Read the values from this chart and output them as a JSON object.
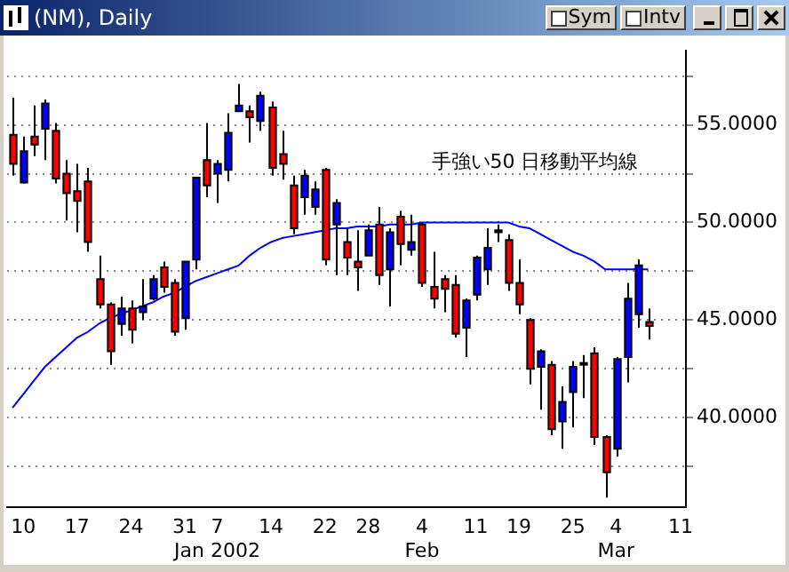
{
  "chart_data": {
    "type": "candlestick",
    "title": "(NM), Daily",
    "categories": [
      null,
      "10",
      null,
      null,
      null,
      null,
      "17",
      null,
      null,
      null,
      null,
      "24",
      null,
      null,
      null,
      null,
      "31",
      null,
      null,
      "7\nJan 2002",
      null,
      null,
      null,
      null,
      "14",
      null,
      null,
      null,
      null,
      "22",
      null,
      null,
      null,
      "28",
      null,
      null,
      null,
      null,
      "4\nFeb",
      null,
      null,
      null,
      null,
      "11",
      null,
      null,
      null,
      "19",
      null,
      null,
      null,
      null,
      "25",
      null,
      null,
      null,
      "4\nMar",
      null,
      null,
      null,
      null,
      null,
      "11"
    ],
    "series": [
      {
        "type": "line",
        "color": "#0000ff",
        "values": [
          40.5,
          41.2,
          41.9,
          42.6,
          43.1,
          43.6,
          44.1,
          44.4,
          44.8,
          45.1,
          45.3,
          45.5,
          45.7,
          45.9,
          46.2,
          46.4,
          46.7,
          47.0,
          47.2,
          47.4,
          47.6,
          47.8,
          48.3,
          48.7,
          49.0,
          49.2,
          49.3,
          49.4,
          49.5,
          49.6,
          49.7,
          49.7,
          49.8,
          49.8,
          49.8,
          49.9,
          49.9,
          49.9,
          50.0,
          50.0,
          50.0,
          50.0,
          50.0,
          50.0,
          50.0,
          50.0,
          50.0,
          49.8,
          49.7,
          49.4,
          49.1,
          48.8,
          48.5,
          48.3,
          48.0,
          47.6,
          47.6,
          47.6,
          47.6,
          47.6,
          null,
          null,
          null
        ]
      },
      {
        "type": "candlestick",
        "colors": [
          "#ff0000",
          "#0000ff",
          "#ff0000",
          "#0000ff",
          "#ff0000",
          "#ff0000",
          "#ff0000",
          "#ff0000",
          "#ff0000",
          "#ff0000",
          "#0000ff",
          "#ff0000",
          "#0000ff",
          "#0000ff",
          "#ff0000",
          "#ff0000",
          "#0000ff",
          "#0000ff",
          "#ff0000",
          "#0000ff",
          "#0000ff",
          "#0000ff",
          "#ff0000",
          "#0000ff",
          "#ff0000",
          "#ff0000",
          "#ff0000",
          "#0000ff",
          "#0000ff",
          "#ff0000",
          "#0000ff",
          "#ff0000",
          "#ff0000",
          "#0000ff",
          "#ff0000",
          "#0000ff",
          "#ff0000",
          "#0000ff",
          "#ff0000",
          "#ff0000",
          "#ff0000",
          "#ff0000",
          "#0000ff",
          "#0000ff",
          "#0000ff",
          "#0000ff",
          "#ff0000",
          "#ff0000",
          "#ff0000",
          "#0000ff",
          "#ff0000",
          "#0000ff",
          "#0000ff",
          "#0000ff",
          "#ff0000",
          "#ff0000",
          "#0000ff",
          "#0000ff",
          "#0000ff",
          "#ff0000",
          null,
          null,
          null
        ],
        "ohlc": [
          [
            54.5,
            56.4,
            52.4,
            53.0
          ],
          [
            52.05,
            54.4,
            52.0,
            53.65
          ],
          [
            54.4,
            56.0,
            53.4,
            54.0
          ],
          [
            54.8,
            56.3,
            53.2,
            56.1
          ],
          [
            54.7,
            55.1,
            52.0,
            52.25
          ],
          [
            52.5,
            53.2,
            50.1,
            51.5
          ],
          [
            51.6,
            53.0,
            49.5,
            51.1
          ],
          [
            52.1,
            52.8,
            48.5,
            49.0
          ],
          [
            47.1,
            48.3,
            45.6,
            45.8
          ],
          [
            45.8,
            45.9,
            42.7,
            43.4
          ],
          [
            44.8,
            46.2,
            44.2,
            45.6
          ],
          [
            45.6,
            46.0,
            43.8,
            44.5
          ],
          [
            45.4,
            47.1,
            45.0,
            45.7
          ],
          [
            46.1,
            47.3,
            46.0,
            47.1
          ],
          [
            47.7,
            48.0,
            46.4,
            46.7
          ],
          [
            46.9,
            47.1,
            44.2,
            44.4
          ],
          [
            45.1,
            48.0,
            44.5,
            48.0
          ],
          [
            48.1,
            52.3,
            47.6,
            52.3
          ],
          [
            53.2,
            55.1,
            51.3,
            51.9
          ],
          [
            52.5,
            53.2,
            51.0,
            53.0
          ],
          [
            52.7,
            55.6,
            52.1,
            54.6
          ],
          [
            55.7,
            57.1,
            55.7,
            56.0
          ],
          [
            55.7,
            56.0,
            54.1,
            55.4
          ],
          [
            55.2,
            56.7,
            54.7,
            56.5
          ],
          [
            55.9,
            56.2,
            52.4,
            52.8
          ],
          [
            53.5,
            54.7,
            52.2,
            53.0
          ],
          [
            51.9,
            52.4,
            49.4,
            49.7
          ],
          [
            51.3,
            52.7,
            50.4,
            52.4
          ],
          [
            50.8,
            52.1,
            50.4,
            51.7
          ],
          [
            52.7,
            52.8,
            47.8,
            48.1
          ],
          [
            49.9,
            51.2,
            47.3,
            51.0
          ],
          [
            49.0,
            49.7,
            47.3,
            48.2
          ],
          [
            48.0,
            49.6,
            46.5,
            47.7
          ],
          [
            48.3,
            49.9,
            48.3,
            49.6
          ],
          [
            49.9,
            50.8,
            46.8,
            47.3
          ],
          [
            47.6,
            49.7,
            45.7,
            49.5
          ],
          [
            50.3,
            50.6,
            47.8,
            48.9
          ],
          [
            48.6,
            50.4,
            48.3,
            49.0
          ],
          [
            49.9,
            50.0,
            46.7,
            46.9
          ],
          [
            46.7,
            48.5,
            45.6,
            46.1
          ],
          [
            47.1,
            47.3,
            45.4,
            46.6
          ],
          [
            46.8,
            47.3,
            44.1,
            44.3
          ],
          [
            44.6,
            46.1,
            43.1,
            46.0
          ],
          [
            46.3,
            48.3,
            46.0,
            48.2
          ],
          [
            47.6,
            49.7,
            46.8,
            48.7
          ],
          [
            49.5,
            49.9,
            49.0,
            49.6
          ],
          [
            49.1,
            49.4,
            46.5,
            46.9
          ],
          [
            46.9,
            48.1,
            45.3,
            45.8
          ],
          [
            45.0,
            45.1,
            41.7,
            42.5
          ],
          [
            42.6,
            43.5,
            40.4,
            43.4
          ],
          [
            42.7,
            42.9,
            39.1,
            39.4
          ],
          [
            39.8,
            41.6,
            38.4,
            40.8
          ],
          [
            41.3,
            42.9,
            39.5,
            42.6
          ],
          [
            42.8,
            43.2,
            41.0,
            42.8
          ],
          [
            43.3,
            43.6,
            38.6,
            39.0
          ],
          [
            39.0,
            39.1,
            35.9,
            37.2
          ],
          [
            38.4,
            43.1,
            38.0,
            43.0
          ],
          [
            43.1,
            46.9,
            41.8,
            46.1
          ],
          [
            45.3,
            48.1,
            44.6,
            47.8
          ],
          [
            44.9,
            45.6,
            44.0,
            44.7
          ],
          null,
          null,
          null
        ]
      }
    ],
    "ylim": [
      35.4,
      58.8
    ],
    "yticks": [
      {
        "value": 37.5,
        "label": null
      },
      {
        "value": 40,
        "label": "40.0000"
      },
      {
        "value": 42.5,
        "label": null
      },
      {
        "value": 45,
        "label": "45.0000"
      },
      {
        "value": 47.5,
        "label": null
      },
      {
        "value": 50,
        "label": "50.0000"
      },
      {
        "value": 52.5,
        "label": null
      },
      {
        "value": 55,
        "label": "55.0000"
      },
      {
        "value": 57.5,
        "label": null
      }
    ],
    "grid": "y",
    "legend": false,
    "annotations": [
      "手強い50 日移動平均線",
      "Sym",
      "Intv"
    ]
  }
}
